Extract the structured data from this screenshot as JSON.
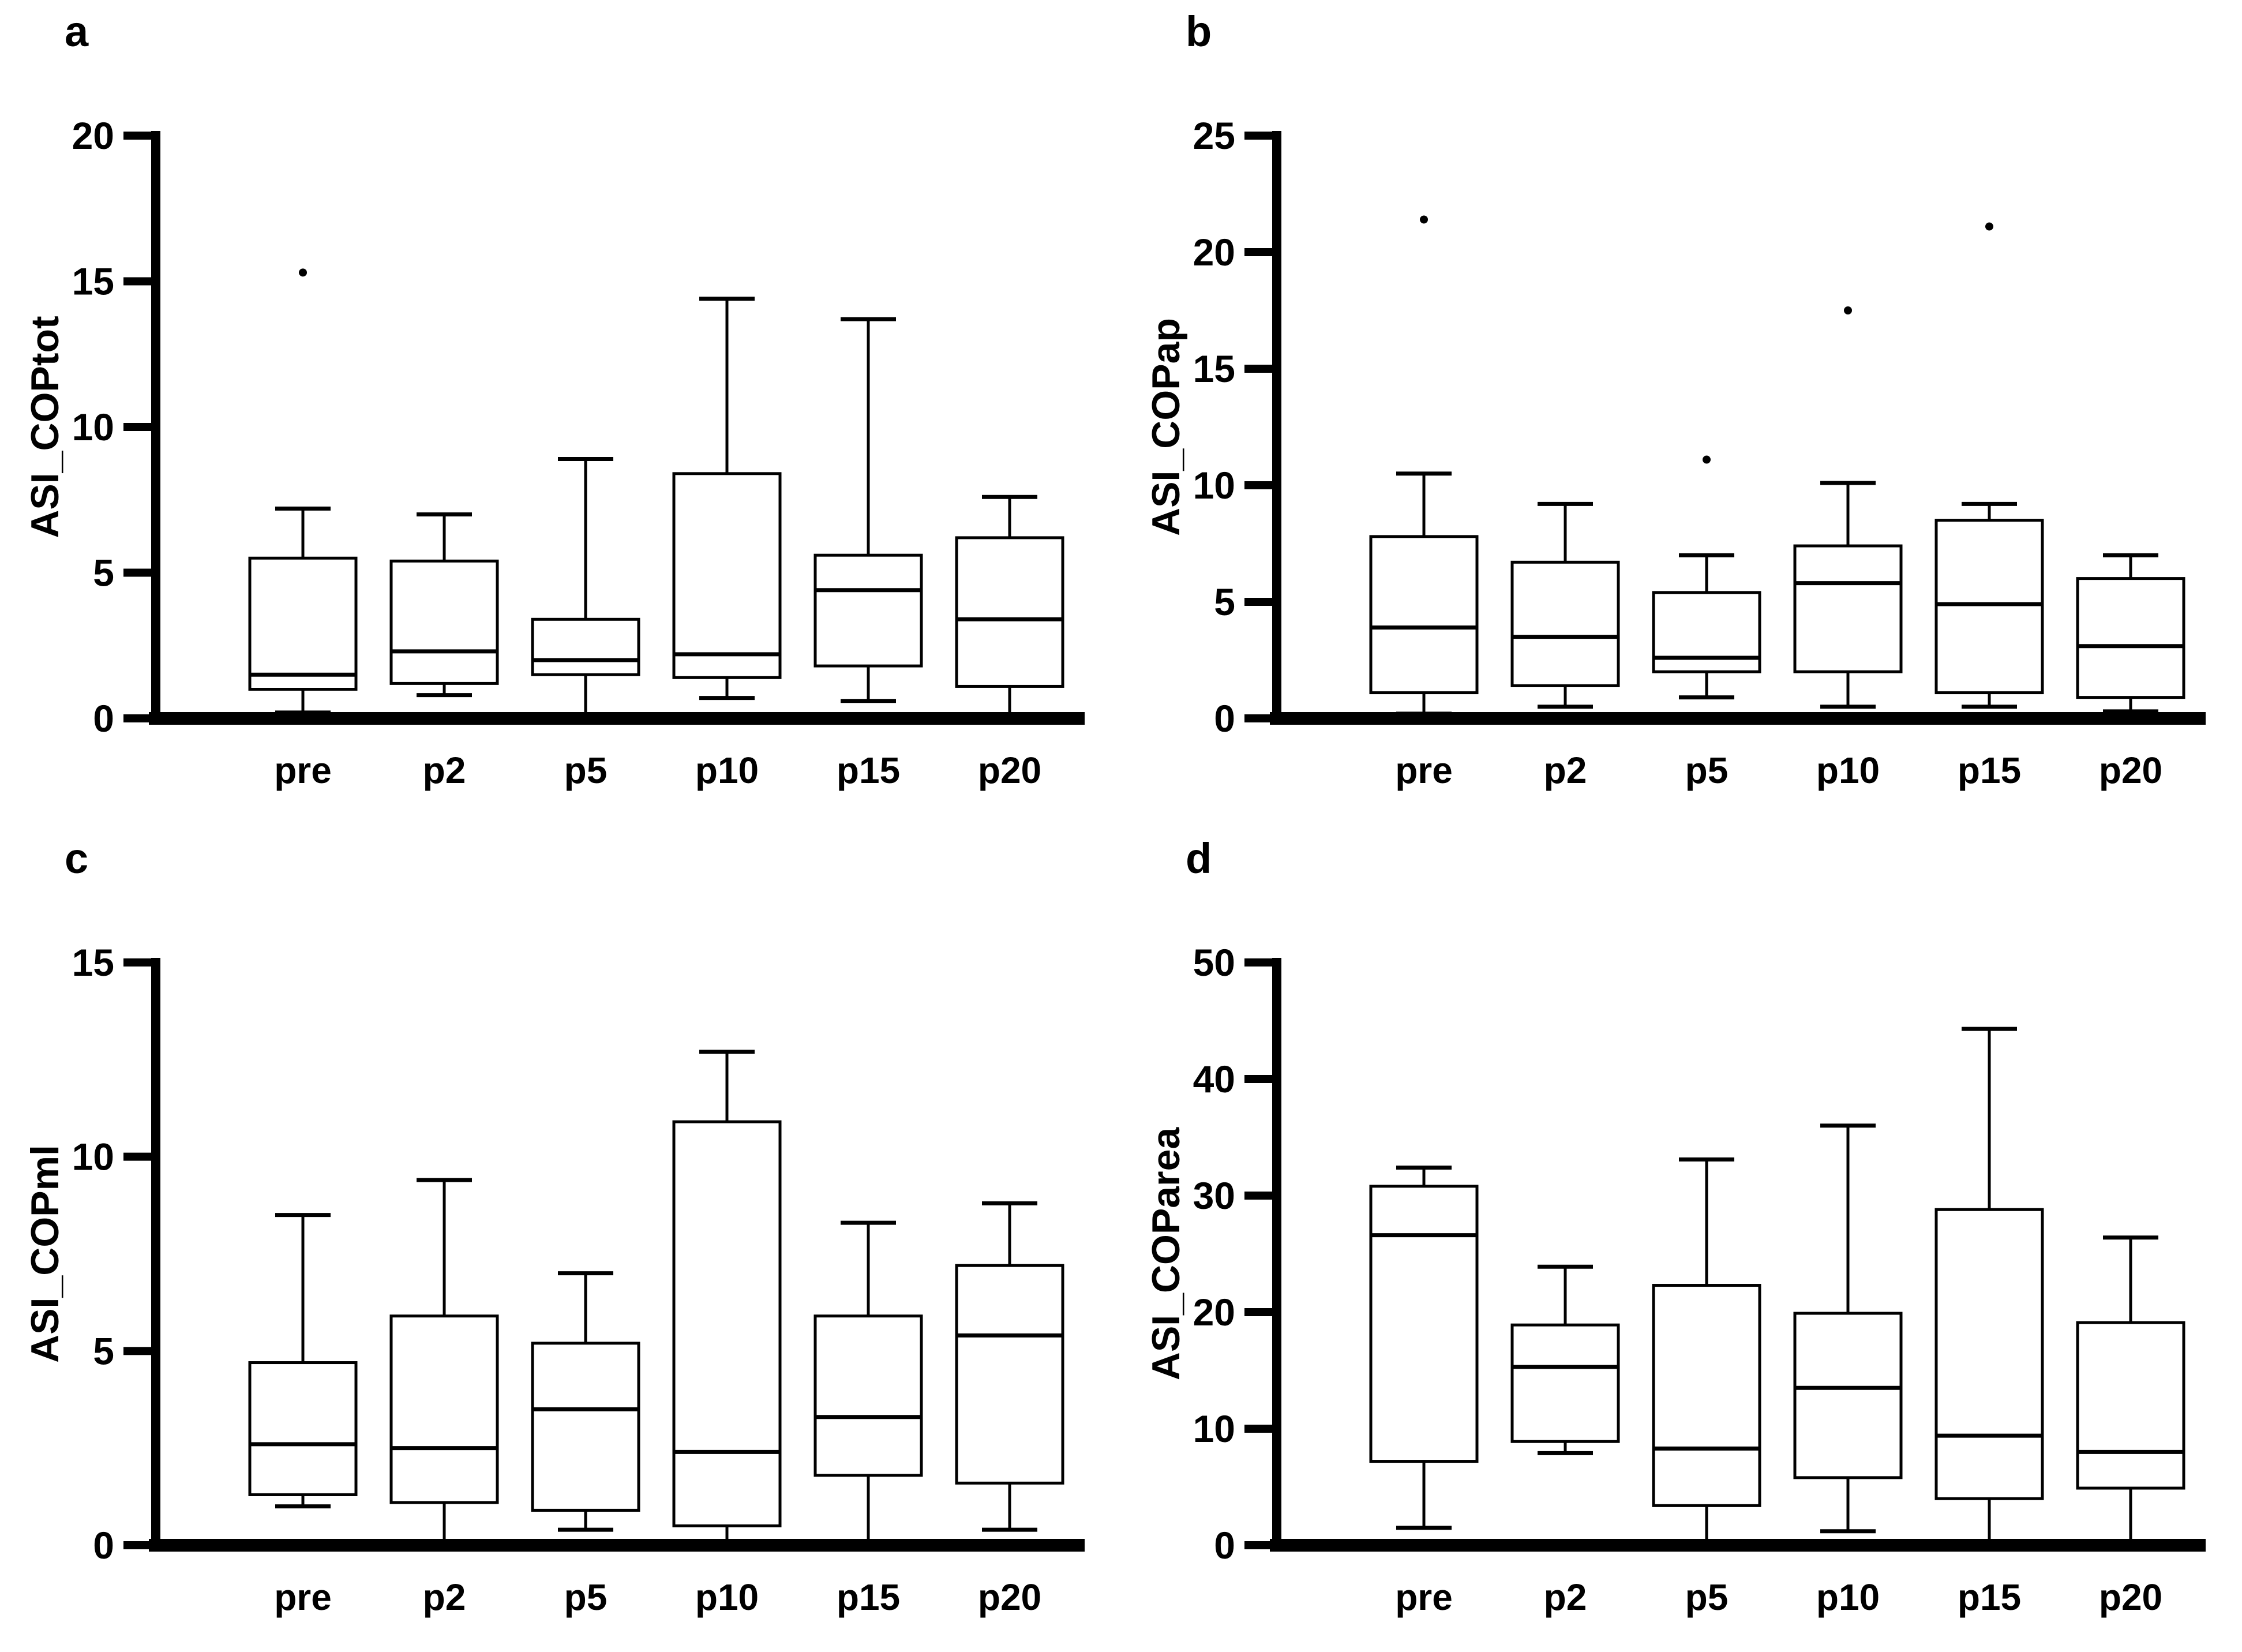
{
  "figure": {
    "background_color": "#ffffff",
    "ink_color": "#000000",
    "panel_letters": [
      "a",
      "b",
      "c",
      "d"
    ],
    "x_categories": [
      "pre",
      "p2",
      "p5",
      "p10",
      "p15",
      "p20"
    ]
  },
  "chart_data": [
    {
      "type": "box",
      "panel_label": "a",
      "title": "",
      "xlabel": "",
      "ylabel": "ASI_COPtot",
      "ylim": [
        0,
        20
      ],
      "yticks": [
        0,
        5,
        10,
        15,
        20
      ],
      "grid": false,
      "legend": "none",
      "categories": [
        "pre",
        "p2",
        "p5",
        "p10",
        "p15",
        "p20"
      ],
      "boxes": [
        {
          "category": "pre",
          "min": 0.2,
          "q1": 1.0,
          "median": 1.5,
          "q3": 5.5,
          "max": 7.2,
          "outliers": [
            15.3
          ]
        },
        {
          "category": "p2",
          "min": 0.8,
          "q1": 1.2,
          "median": 2.3,
          "q3": 5.4,
          "max": 7.0,
          "outliers": []
        },
        {
          "category": "p5",
          "min": 0.1,
          "q1": 1.5,
          "median": 2.0,
          "q3": 3.4,
          "max": 8.9,
          "outliers": []
        },
        {
          "category": "p10",
          "min": 0.7,
          "q1": 1.4,
          "median": 2.2,
          "q3": 8.4,
          "max": 14.4,
          "outliers": []
        },
        {
          "category": "p15",
          "min": 0.6,
          "q1": 1.8,
          "median": 4.4,
          "q3": 5.6,
          "max": 13.7,
          "outliers": []
        },
        {
          "category": "p20",
          "min": 0.1,
          "q1": 1.1,
          "median": 3.4,
          "q3": 6.2,
          "max": 7.6,
          "outliers": []
        }
      ]
    },
    {
      "type": "box",
      "panel_label": "b",
      "title": "",
      "xlabel": "",
      "ylabel": "ASI_COPap",
      "ylim": [
        0,
        25
      ],
      "yticks": [
        0,
        5,
        10,
        15,
        20,
        25
      ],
      "grid": false,
      "legend": "none",
      "categories": [
        "pre",
        "p2",
        "p5",
        "p10",
        "p15",
        "p20"
      ],
      "boxes": [
        {
          "category": "pre",
          "min": 0.2,
          "q1": 1.1,
          "median": 3.9,
          "q3": 7.8,
          "max": 10.5,
          "outliers": [
            21.4
          ]
        },
        {
          "category": "p2",
          "min": 0.5,
          "q1": 1.4,
          "median": 3.5,
          "q3": 6.7,
          "max": 9.2,
          "outliers": []
        },
        {
          "category": "p5",
          "min": 0.9,
          "q1": 2.0,
          "median": 2.6,
          "q3": 5.4,
          "max": 7.0,
          "outliers": [
            11.1
          ]
        },
        {
          "category": "p10",
          "min": 0.5,
          "q1": 2.0,
          "median": 5.8,
          "q3": 7.4,
          "max": 10.1,
          "outliers": [
            17.5
          ]
        },
        {
          "category": "p15",
          "min": 0.5,
          "q1": 1.1,
          "median": 4.9,
          "q3": 8.5,
          "max": 9.2,
          "outliers": [
            21.1
          ]
        },
        {
          "category": "p20",
          "min": 0.3,
          "q1": 0.9,
          "median": 3.1,
          "q3": 6.0,
          "max": 7.0,
          "outliers": []
        }
      ]
    },
    {
      "type": "box",
      "panel_label": "c",
      "title": "",
      "xlabel": "",
      "ylabel": "ASI_COPml",
      "ylim": [
        0,
        15
      ],
      "yticks": [
        0,
        5,
        10,
        15
      ],
      "grid": false,
      "legend": "none",
      "categories": [
        "pre",
        "p2",
        "p5",
        "p10",
        "p15",
        "p20"
      ],
      "boxes": [
        {
          "category": "pre",
          "min": 1.0,
          "q1": 1.3,
          "median": 2.6,
          "q3": 4.7,
          "max": 8.5,
          "outliers": []
        },
        {
          "category": "p2",
          "min": 0.1,
          "q1": 1.1,
          "median": 2.5,
          "q3": 5.9,
          "max": 9.4,
          "outliers": []
        },
        {
          "category": "p5",
          "min": 0.4,
          "q1": 0.9,
          "median": 3.5,
          "q3": 5.2,
          "max": 7.0,
          "outliers": []
        },
        {
          "category": "p10",
          "min": 0.1,
          "q1": 0.5,
          "median": 2.4,
          "q3": 10.9,
          "max": 12.7,
          "outliers": []
        },
        {
          "category": "p15",
          "min": 0.1,
          "q1": 1.8,
          "median": 3.3,
          "q3": 5.9,
          "max": 8.3,
          "outliers": []
        },
        {
          "category": "p20",
          "min": 0.4,
          "q1": 1.6,
          "median": 5.4,
          "q3": 7.2,
          "max": 8.8,
          "outliers": []
        }
      ]
    },
    {
      "type": "box",
      "panel_label": "d",
      "title": "",
      "xlabel": "",
      "ylabel": "ASI_COParea",
      "ylim": [
        0,
        50
      ],
      "yticks": [
        0,
        10,
        20,
        30,
        40,
        50
      ],
      "grid": false,
      "legend": "none",
      "categories": [
        "pre",
        "p2",
        "p5",
        "p10",
        "p15",
        "p20"
      ],
      "boxes": [
        {
          "category": "pre",
          "min": 1.5,
          "q1": 7.2,
          "median": 26.6,
          "q3": 30.8,
          "max": 32.4,
          "outliers": []
        },
        {
          "category": "p2",
          "min": 7.9,
          "q1": 8.9,
          "median": 15.3,
          "q3": 18.9,
          "max": 23.9,
          "outliers": []
        },
        {
          "category": "p5",
          "min": 0.1,
          "q1": 3.4,
          "median": 8.3,
          "q3": 22.3,
          "max": 33.1,
          "outliers": []
        },
        {
          "category": "p10",
          "min": 1.2,
          "q1": 5.8,
          "median": 13.5,
          "q3": 19.9,
          "max": 36.0,
          "outliers": []
        },
        {
          "category": "p15",
          "min": 0.1,
          "q1": 4.0,
          "median": 9.4,
          "q3": 28.8,
          "max": 44.3,
          "outliers": []
        },
        {
          "category": "p20",
          "min": 0.1,
          "q1": 4.9,
          "median": 8.0,
          "q3": 19.1,
          "max": 26.4,
          "outliers": []
        }
      ]
    }
  ]
}
